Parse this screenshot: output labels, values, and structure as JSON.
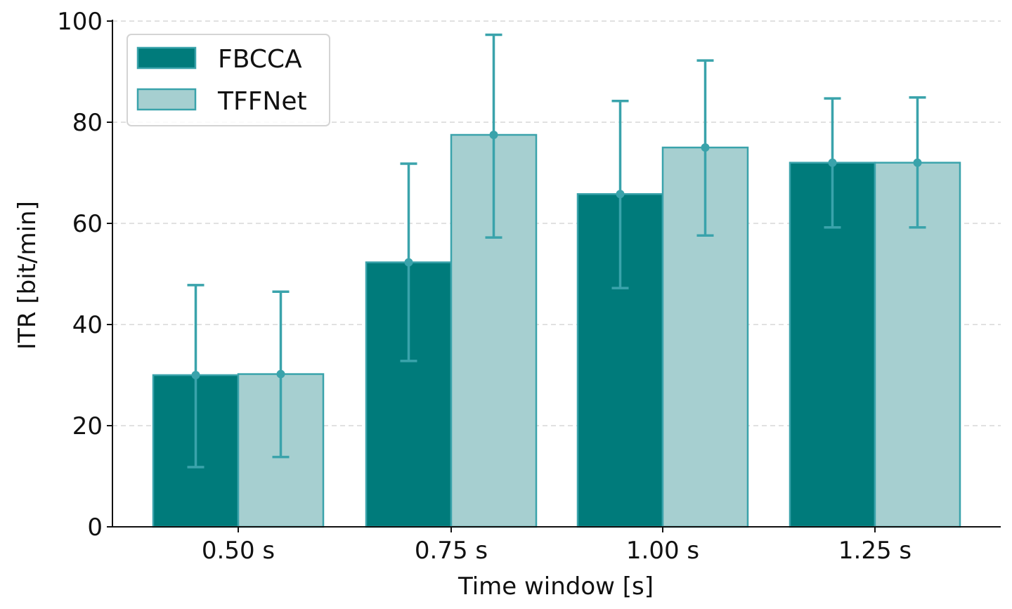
{
  "chart_data": {
    "type": "bar",
    "title": "",
    "xlabel": "Time window [s]",
    "ylabel": "ITR [bit/min]",
    "categories": [
      "0.50 s",
      "0.75 s",
      "1.00 s",
      "1.25 s"
    ],
    "ylim": [
      0,
      100
    ],
    "yticks": [
      "0",
      "20",
      "40",
      "60",
      "80",
      "100"
    ],
    "grid": "horizontal dashed",
    "legend_position": "top-left",
    "series": [
      {
        "name": "FBCCA",
        "color": "#007b7b",
        "values": [
          30,
          52.3,
          65.8,
          72
        ],
        "error_low": [
          11.8,
          32.8,
          47.2,
          59.2
        ],
        "error_high": [
          47.8,
          71.8,
          84.2,
          84.7
        ]
      },
      {
        "name": "TFFNet",
        "color": "#a6cfd0",
        "values": [
          30.2,
          77.5,
          75,
          72
        ],
        "error_low": [
          13.8,
          57.2,
          57.6,
          59.2
        ],
        "error_high": [
          46.5,
          97.3,
          92.2,
          84.9
        ]
      }
    ],
    "error_bar_color": "#3aa3ab",
    "bar_edge_color": "#3aa3ab"
  }
}
